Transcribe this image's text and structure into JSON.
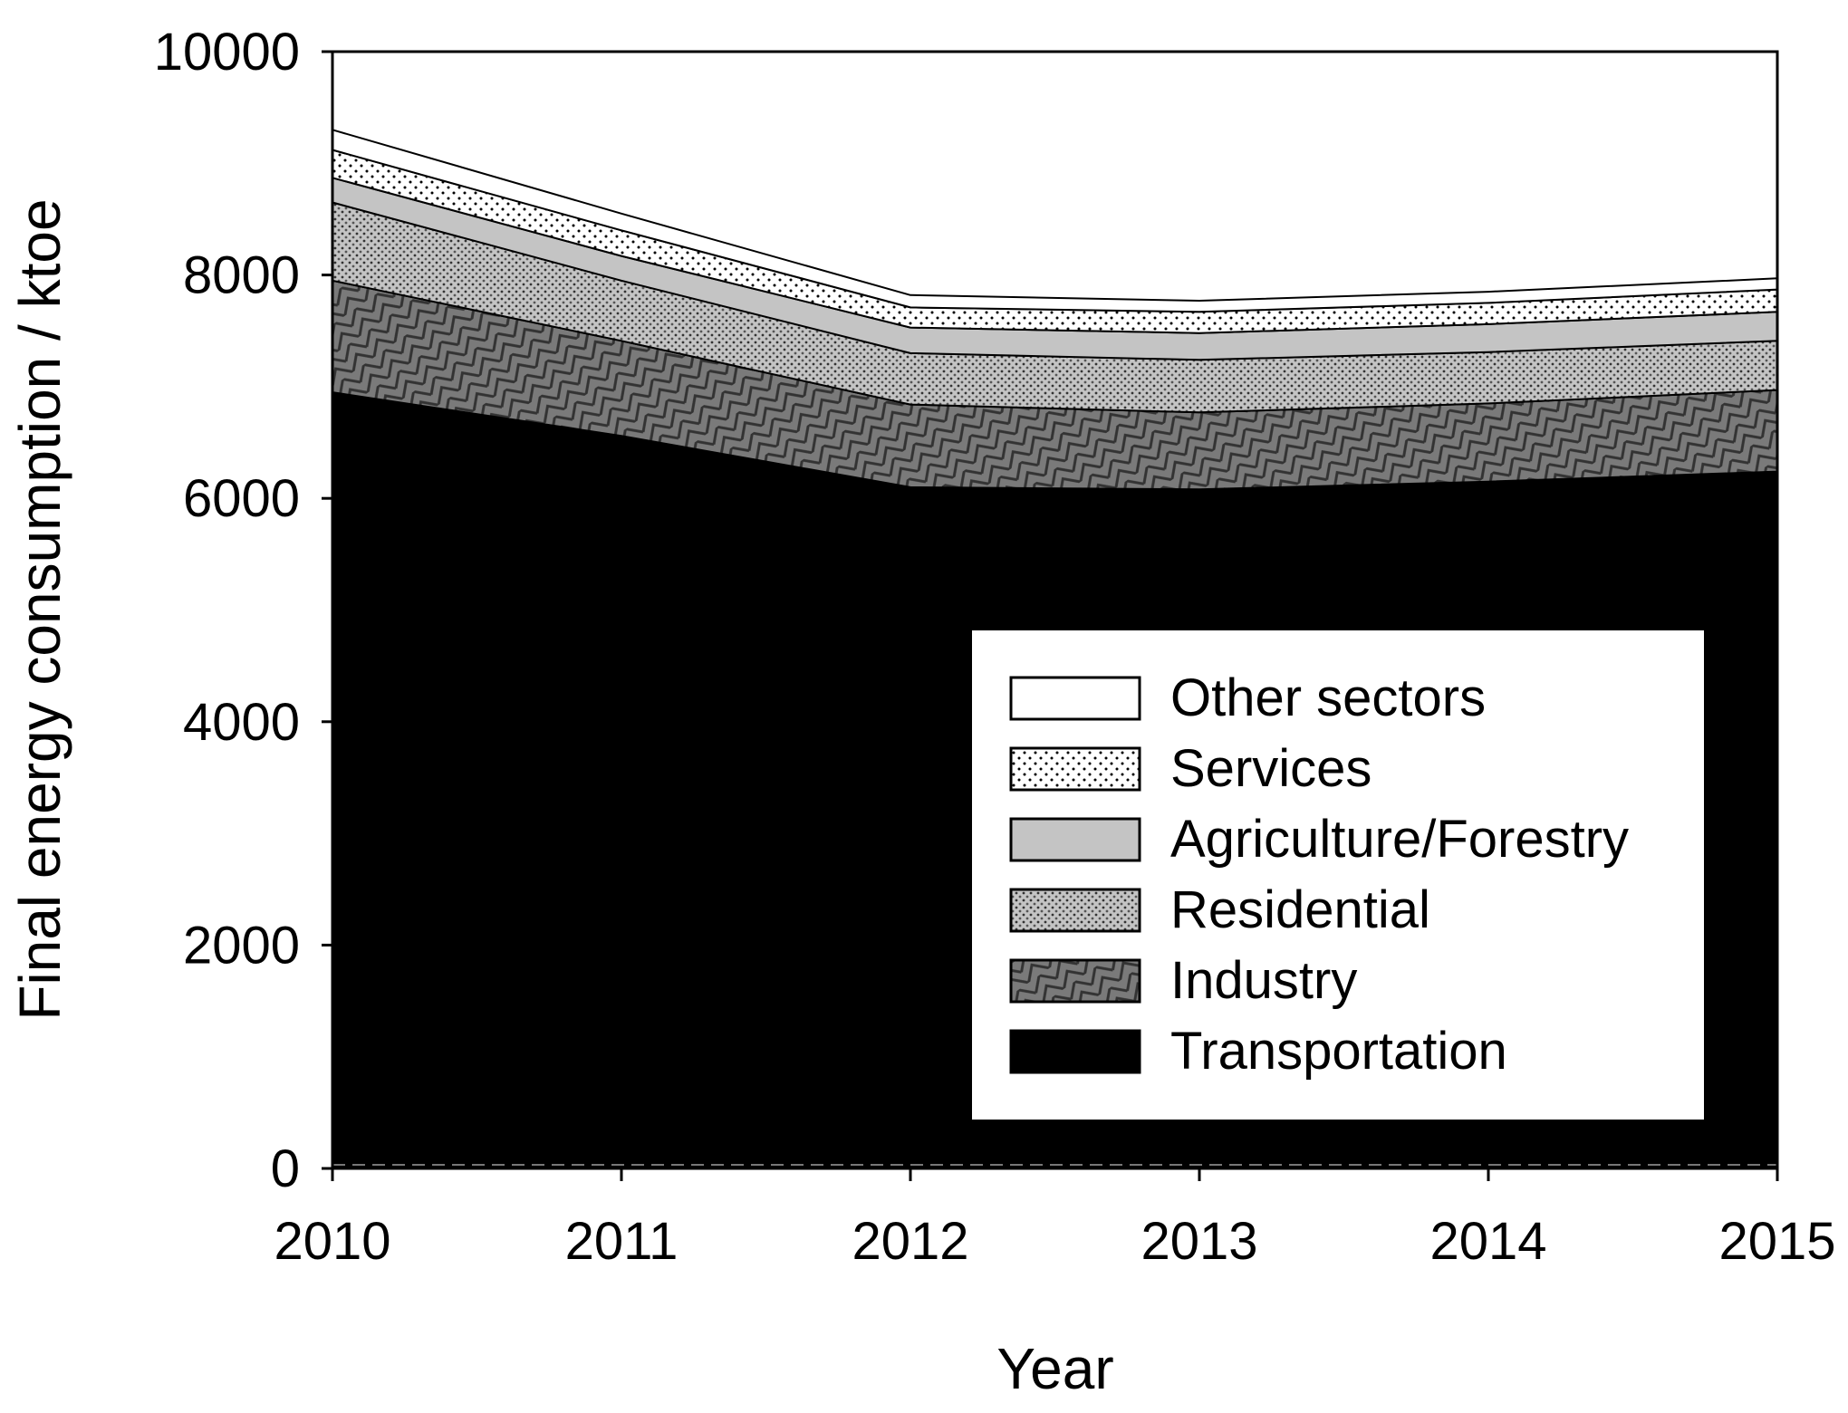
{
  "chart_data": {
    "type": "area",
    "stacked": true,
    "title": "",
    "xlabel": "Year",
    "ylabel": "Final energy  consumption / ktoe",
    "x": [
      2010,
      2011,
      2012,
      2013,
      2014,
      2015
    ],
    "xlim": [
      2010,
      2015
    ],
    "ylim": [
      0,
      10000
    ],
    "yticks": [
      0,
      2000,
      4000,
      6000,
      8000,
      10000
    ],
    "grid": false,
    "legend_position": "bottom-right",
    "series": [
      {
        "name": "Transportation",
        "values": [
          6950,
          6560,
          6100,
          6080,
          6150,
          6240
        ]
      },
      {
        "name": "Industry",
        "values": [
          1000,
          850,
          740,
          690,
          700,
          730
        ]
      },
      {
        "name": "Residential",
        "values": [
          700,
          540,
          460,
          470,
          460,
          440
        ]
      },
      {
        "name": "Agriculture/Forestry",
        "values": [
          220,
          220,
          230,
          240,
          250,
          260
        ]
      },
      {
        "name": "Services",
        "values": [
          250,
          230,
          180,
          190,
          190,
          200
        ]
      },
      {
        "name": "Other sectors",
        "values": [
          180,
          150,
          110,
          100,
          100,
          100
        ]
      }
    ],
    "legend_order": [
      "Other sectors",
      "Services",
      "Agriculture/Forestry",
      "Residential",
      "Industry",
      "Transportation"
    ]
  }
}
